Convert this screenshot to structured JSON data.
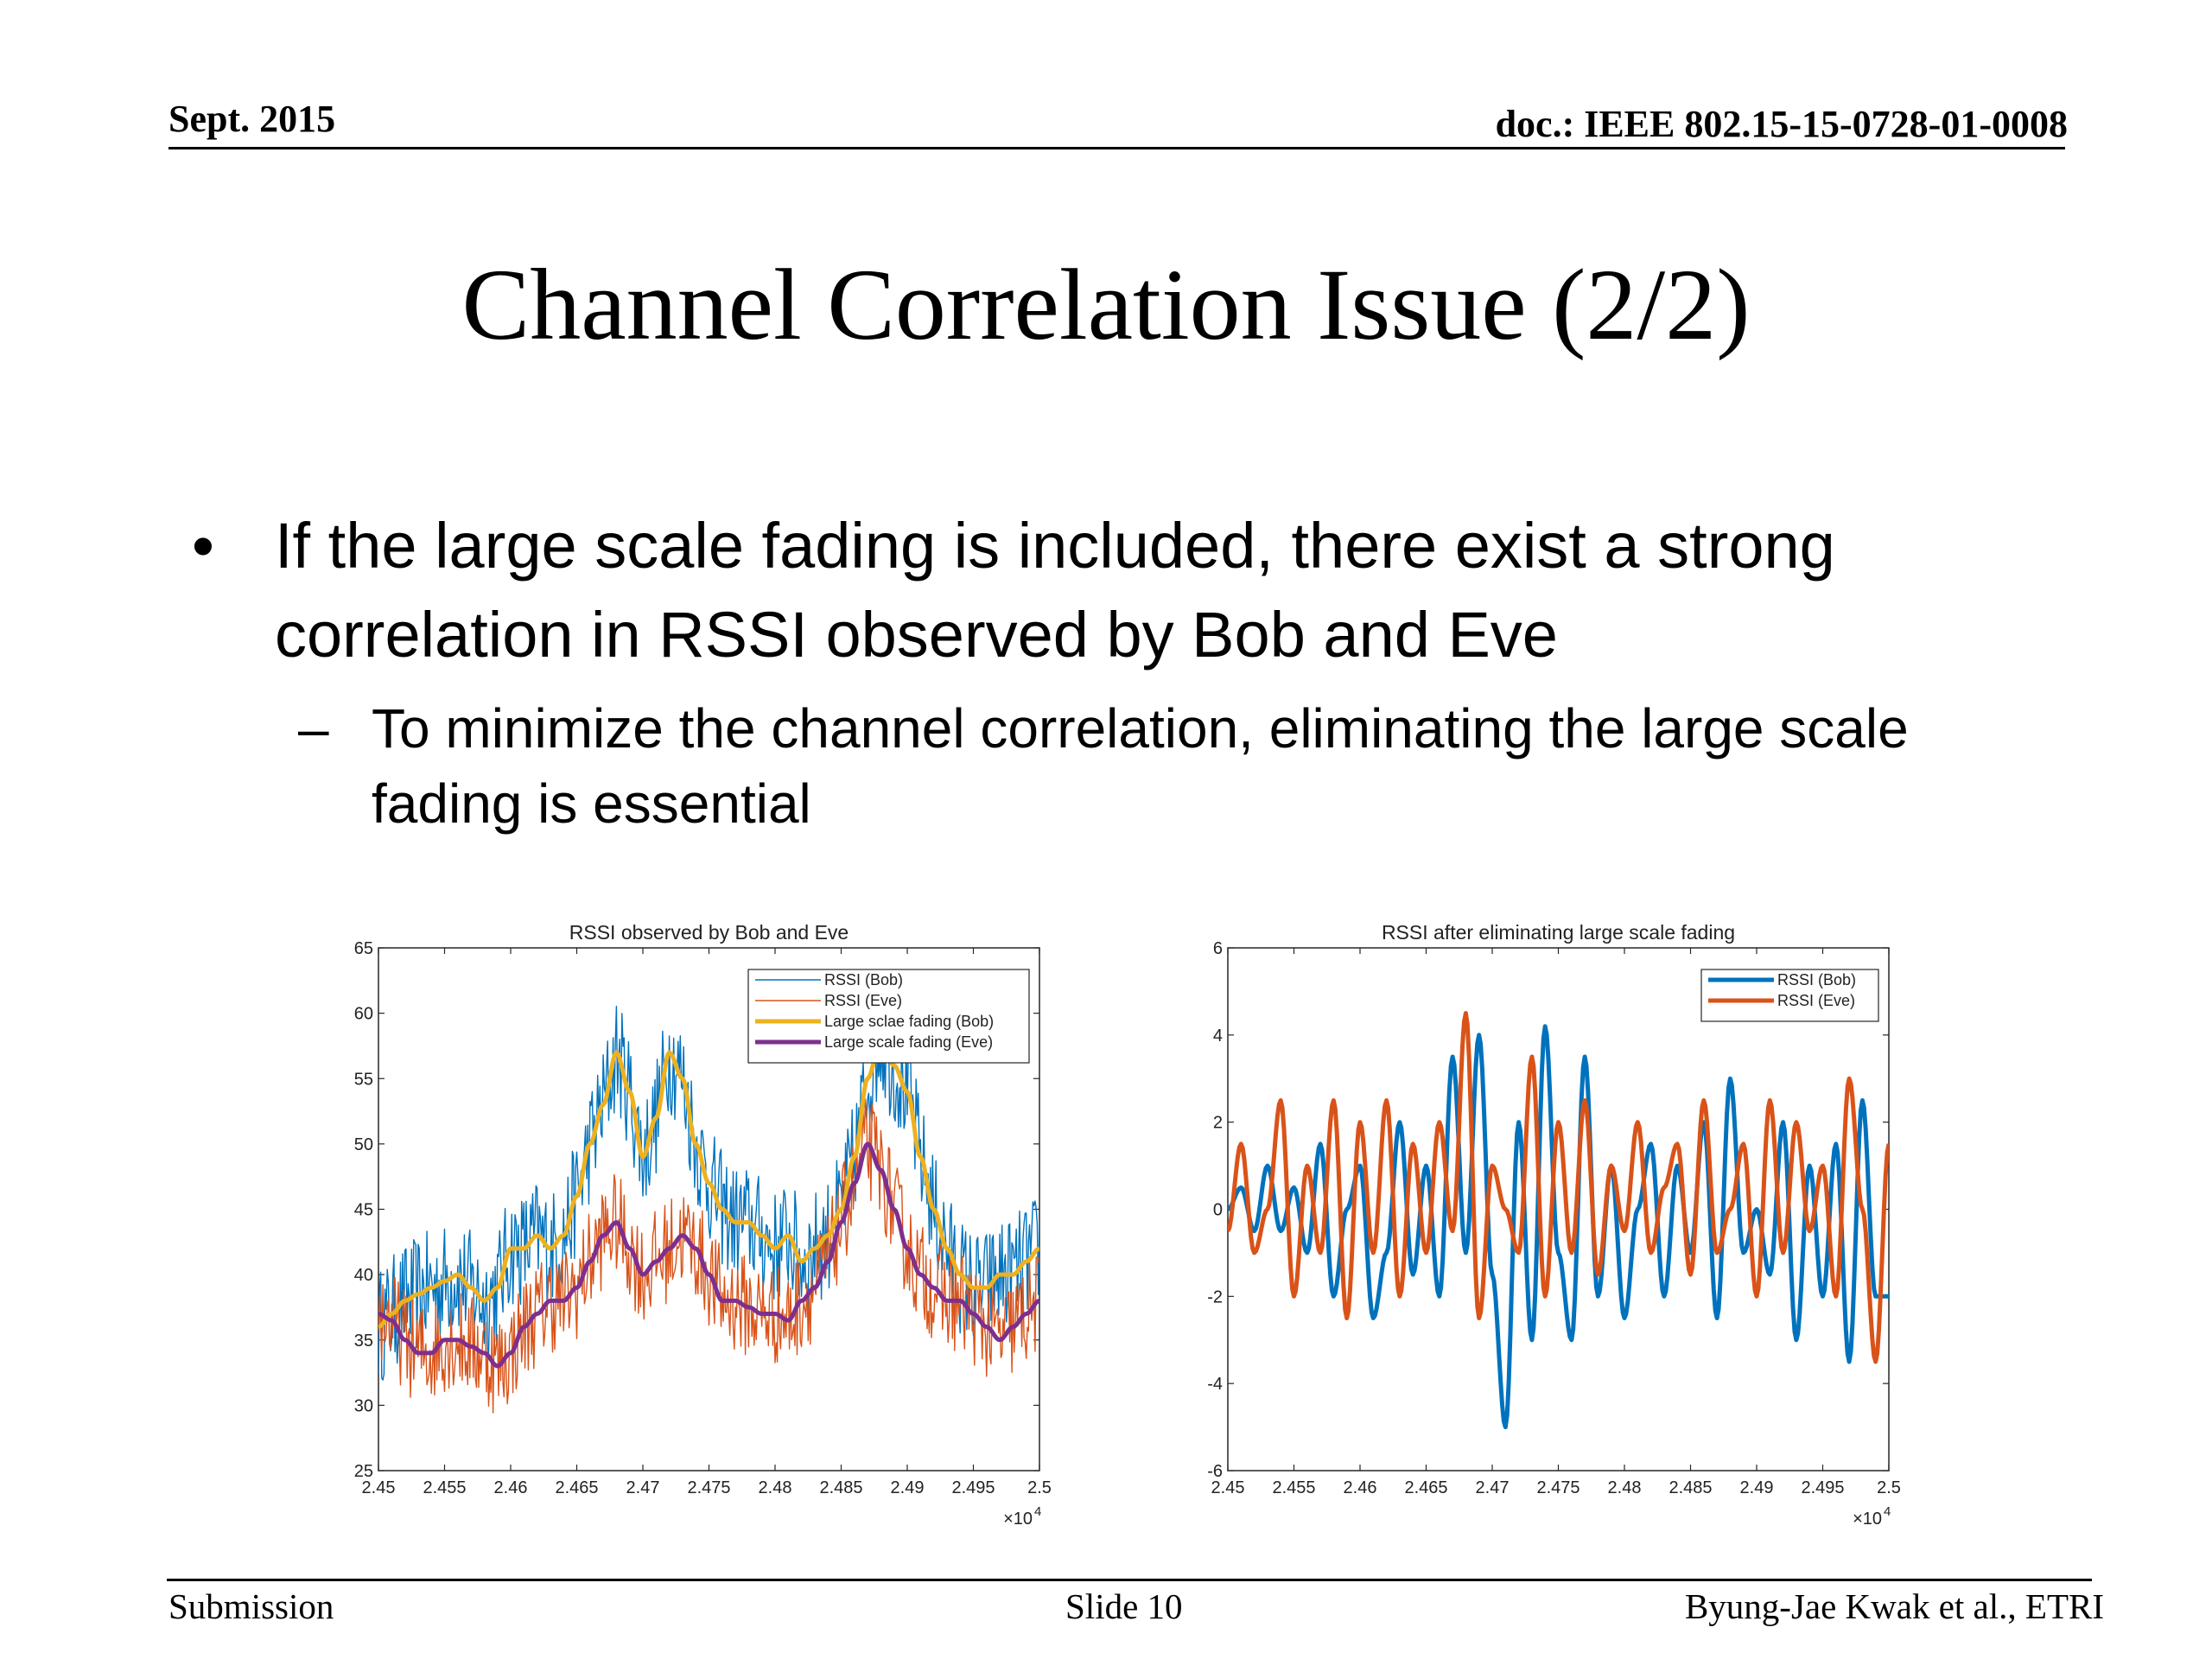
{
  "header": {
    "date": "Sept. 2015",
    "doc": "doc.: IEEE 802.15-15-0728-01-0008"
  },
  "slide": {
    "title": "Channel Correlation Issue (2/2)",
    "bullet_marker": "•",
    "bullet": "If the large scale fading is included, there exist a strong correlation in RSSI observed by Bob and Eve",
    "sub_marker": "–",
    "sub_bullet": "To minimize the channel correlation, eliminating the large scale fading is essential"
  },
  "footer": {
    "left": "Submission",
    "center": "Slide 10",
    "right": "Byung-Jae Kwak et al., ETRI"
  },
  "chart_data": [
    {
      "type": "line",
      "title": "RSSI observed by Bob and Eve",
      "xlabel": "",
      "ylabel": "",
      "xlim": [
        24500,
        25000
      ],
      "ylim": [
        25,
        65
      ],
      "x_exponent_label": "×10",
      "x_exponent": "4",
      "xtick_labels": [
        "2.45",
        "2.455",
        "2.46",
        "2.465",
        "2.47",
        "2.475",
        "2.48",
        "2.485",
        "2.49",
        "2.495",
        "2.5"
      ],
      "ytick_labels": [
        "25",
        "30",
        "35",
        "40",
        "45",
        "50",
        "55",
        "60",
        "65"
      ],
      "legend_position": "top-right",
      "series": [
        {
          "name": "RSSI (Bob)",
          "color": "#0072BD",
          "width": "thin",
          "noise": 4.5,
          "x": [
            24500,
            24510,
            24520,
            24530,
            24540,
            24550,
            24560,
            24570,
            24580,
            24590,
            24600,
            24610,
            24620,
            24630,
            24640,
            24650,
            24660,
            24670,
            24680,
            24690,
            24700,
            24710,
            24720,
            24730,
            24740,
            24750,
            24760,
            24770,
            24780,
            24790,
            24800,
            24810,
            24820,
            24830,
            24840,
            24850,
            24860,
            24870,
            24880,
            24890,
            24900,
            24910,
            24920,
            24930,
            24940,
            24950,
            24960,
            24970,
            24980,
            24990,
            25000
          ],
          "values": [
            36,
            37,
            38,
            38.5,
            39,
            39.5,
            40,
            39,
            38,
            39,
            42,
            42,
            43,
            42,
            43,
            46,
            50,
            53,
            57,
            54,
            49,
            52,
            57,
            55,
            50,
            47,
            45,
            44,
            44,
            43,
            42,
            43,
            41,
            42,
            43,
            45,
            49,
            55,
            58,
            56,
            54,
            49,
            45,
            42,
            40,
            39,
            39,
            40,
            40,
            41,
            42
          ]
        },
        {
          "name": "RSSI (Eve)",
          "color": "#D95319",
          "width": "thin",
          "noise": 4,
          "x": [
            24500,
            24510,
            24520,
            24530,
            24540,
            24550,
            24560,
            24570,
            24580,
            24590,
            24600,
            24610,
            24620,
            24630,
            24640,
            24650,
            24660,
            24670,
            24680,
            24690,
            24700,
            24710,
            24720,
            24730,
            24740,
            24750,
            24760,
            24770,
            24780,
            24790,
            24800,
            24810,
            24820,
            24830,
            24840,
            24850,
            24860,
            24870,
            24880,
            24890,
            24900,
            24910,
            24920,
            24930,
            24940,
            24950,
            24960,
            24970,
            24980,
            24990,
            25000
          ],
          "values": [
            37,
            36.5,
            35,
            34,
            34,
            35,
            35,
            34.5,
            34,
            33,
            34,
            36,
            37,
            38,
            38,
            39,
            41,
            43,
            44,
            42,
            40,
            41,
            42,
            43,
            42,
            40,
            38,
            38,
            37.5,
            37,
            37,
            36.5,
            38,
            39,
            41,
            44,
            47,
            50,
            48,
            45,
            42,
            40,
            39,
            38,
            38,
            37,
            36,
            35,
            36,
            37,
            38
          ]
        },
        {
          "name": "Large sclae fading (Bob)",
          "color": "#EDB120",
          "width": "thick",
          "x": [
            24500,
            24510,
            24520,
            24530,
            24540,
            24550,
            24560,
            24570,
            24580,
            24590,
            24600,
            24610,
            24620,
            24630,
            24640,
            24650,
            24660,
            24670,
            24680,
            24690,
            24700,
            24710,
            24720,
            24730,
            24740,
            24750,
            24760,
            24770,
            24780,
            24790,
            24800,
            24810,
            24820,
            24830,
            24840,
            24850,
            24860,
            24870,
            24880,
            24890,
            24900,
            24910,
            24920,
            24930,
            24940,
            24950,
            24960,
            24970,
            24980,
            24990,
            25000
          ],
          "values": [
            36,
            37,
            38,
            38.5,
            39,
            39.5,
            40,
            39,
            38,
            39,
            42,
            42,
            43,
            42,
            43,
            46,
            50,
            53,
            57,
            54,
            49,
            52,
            57,
            55,
            50,
            47,
            45,
            44,
            44,
            43,
            42,
            43,
            41,
            42,
            43,
            45,
            49,
            55,
            58,
            56,
            54,
            49,
            45,
            42,
            40,
            39,
            39,
            40,
            40,
            41,
            42
          ]
        },
        {
          "name": "Large scale fading (Eve)",
          "color": "#7E2F8E",
          "width": "thick",
          "x": [
            24500,
            24510,
            24520,
            24530,
            24540,
            24550,
            24560,
            24570,
            24580,
            24590,
            24600,
            24610,
            24620,
            24630,
            24640,
            24650,
            24660,
            24670,
            24680,
            24690,
            24700,
            24710,
            24720,
            24730,
            24740,
            24750,
            24760,
            24770,
            24780,
            24790,
            24800,
            24810,
            24820,
            24830,
            24840,
            24850,
            24860,
            24870,
            24880,
            24890,
            24900,
            24910,
            24920,
            24930,
            24940,
            24950,
            24960,
            24970,
            24980,
            24990,
            25000
          ],
          "values": [
            37,
            36.5,
            35,
            34,
            34,
            35,
            35,
            34.5,
            34,
            33,
            34,
            36,
            37,
            38,
            38,
            39,
            41,
            43,
            44,
            42,
            40,
            41,
            42,
            43,
            42,
            40,
            38,
            38,
            37.5,
            37,
            37,
            36.5,
            38,
            39,
            41,
            44,
            47,
            50,
            48,
            45,
            42,
            40,
            39,
            38,
            38,
            37,
            36,
            35,
            36,
            37,
            38
          ]
        }
      ]
    },
    {
      "type": "line",
      "title": "RSSI after eliminating large scale fading",
      "xlabel": "",
      "ylabel": "",
      "xlim": [
        24500,
        25000
      ],
      "ylim": [
        -6,
        6
      ],
      "x_exponent_label": "×10",
      "x_exponent": "4",
      "xtick_labels": [
        "2.45",
        "2.455",
        "2.46",
        "2.465",
        "2.47",
        "2.475",
        "2.48",
        "2.485",
        "2.49",
        "2.495",
        "2.5"
      ],
      "ytick_labels": [
        "-6",
        "-4",
        "-2",
        "0",
        "2",
        "4",
        "6"
      ],
      "legend_position": "top-right",
      "series": [
        {
          "name": "RSSI (Bob)",
          "color": "#0072BD",
          "width": "thick",
          "x": [
            24500,
            24510,
            24520,
            24530,
            24540,
            24550,
            24560,
            24570,
            24580,
            24590,
            24600,
            24610,
            24620,
            24630,
            24640,
            24650,
            24660,
            24670,
            24680,
            24690,
            24700,
            24710,
            24720,
            24730,
            24740,
            24750,
            24760,
            24770,
            24780,
            24790,
            24800,
            24810,
            24820,
            24830,
            24840,
            24850,
            24860,
            24870,
            24880,
            24890,
            24900,
            24910,
            24920,
            24930,
            24940,
            24950,
            24960,
            24970,
            24980,
            24990,
            25000
          ],
          "values": [
            0,
            0.5,
            -0.5,
            1,
            -0.5,
            0.5,
            -1,
            1.5,
            -2,
            0,
            1,
            -2.5,
            -1,
            2,
            -1.5,
            1,
            -2,
            3.5,
            -1,
            4,
            -1.5,
            -5,
            2,
            -3,
            4.2,
            -1,
            -3,
            3.5,
            -2,
            1,
            -2.5,
            0,
            1.5,
            -2,
            1,
            -1,
            2,
            -2.5,
            3,
            -1,
            0,
            -1.5,
            2,
            -3,
            1,
            -2,
            1.5,
            -3.5,
            2.5,
            -2,
            -2
          ]
        },
        {
          "name": "RSSI (Eve)",
          "color": "#D95319",
          "width": "thick",
          "x": [
            24500,
            24510,
            24520,
            24530,
            24540,
            24550,
            24560,
            24570,
            24580,
            24590,
            24600,
            24610,
            24620,
            24630,
            24640,
            24650,
            24660,
            24670,
            24680,
            24690,
            24700,
            24710,
            24720,
            24730,
            24740,
            24750,
            24760,
            24770,
            24780,
            24790,
            24800,
            24810,
            24820,
            24830,
            24840,
            24850,
            24860,
            24870,
            24880,
            24890,
            24900,
            24910,
            24920,
            24930,
            24940,
            24950,
            24960,
            24970,
            24980,
            24990,
            25000
          ],
          "values": [
            -0.5,
            1.5,
            -1,
            0,
            2.5,
            -2,
            1,
            -1,
            2.5,
            -2.5,
            2,
            -1,
            2.5,
            -2,
            1.5,
            -1,
            2,
            -0.5,
            4.5,
            -2.5,
            1,
            0,
            -1,
            3.5,
            -2,
            2,
            -1,
            2.5,
            -1.5,
            1,
            -0.5,
            2,
            -1,
            0.5,
            1.5,
            -1.5,
            2.5,
            -1,
            0,
            1.5,
            -2,
            2.5,
            -1,
            2,
            -0.5,
            1,
            -2,
            3,
            0,
            -3.5,
            1.5
          ]
        }
      ]
    }
  ]
}
